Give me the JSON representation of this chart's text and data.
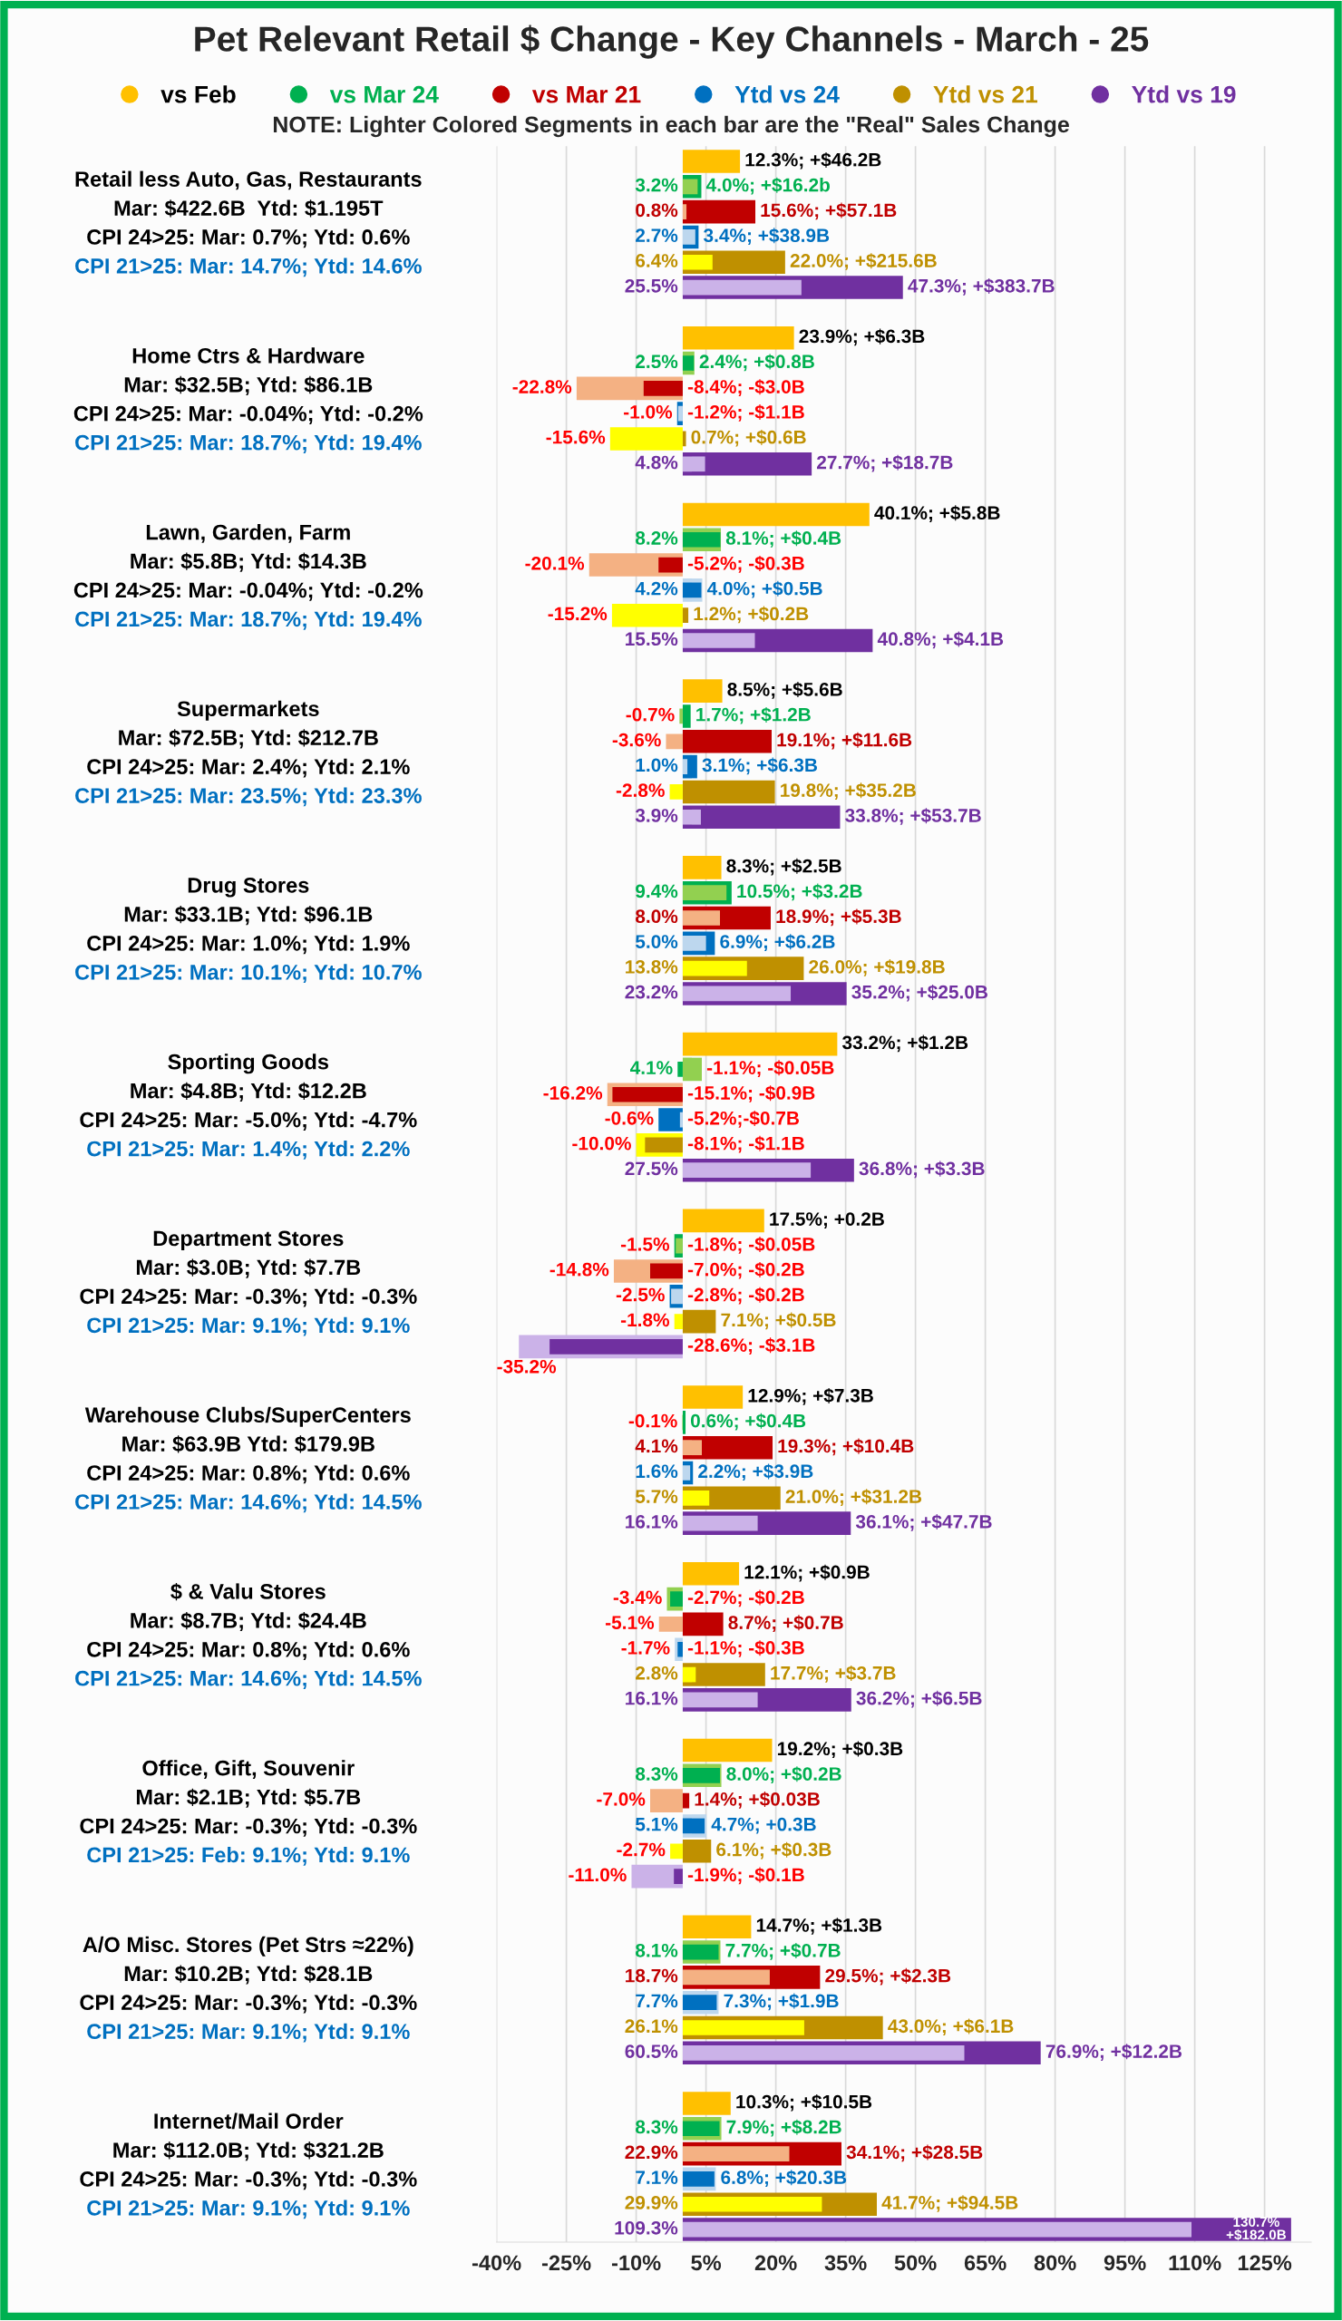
{
  "chart_data": {
    "type": "bar",
    "orientation": "horizontal",
    "title": "Pet Relevant Retail $ Change - Key Channels - March - 25",
    "annotations": [
      "NOTE: Lighter Colored Segments in each bar are the \"Real\" Sales Change"
    ],
    "categories": [
      "Retail less Auto, Gas, Restaurants\nMar: $422.6B  Ytd: $1.195T\nCPI 24>25: Mar: 0.7%; Ytd: 0.6%\nCPI 21>25: Mar: 14.7%; Ytd: 14.6%",
      "Home Ctrs & Hardware\nMar: $32.5B; Ytd: $86.1B\nCPI 24>25: Mar: -0.04%; Ytd: -0.2%\nCPI 21>25: Mar: 18.7%; Ytd: 19.4%",
      "Lawn, Garden, Farm\nMar: $5.8B; Ytd: $14.3B\nCPI 24>25: Mar: -0.04%; Ytd: -0.2%\nCPI 21>25: Mar: 18.7%; Ytd: 19.4%",
      "Supermarkets\nMar: $72.5B; Ytd: $212.7B\nCPI 24>25: Mar: 2.4%; Ytd: 2.1%\nCPI 21>25: Mar: 23.5%; Ytd: 23.3%",
      "Drug Stores\nMar: $33.1B; Ytd: $96.1B\nCPI 24>25: Mar: 1.0%; Ytd: 1.9%\nCPI 21>25: Mar: 10.1%; Ytd: 10.7%",
      "Sporting Goods\nMar: $4.8B; Ytd: $12.2B\nCPI 24>25: Mar: -5.0%; Ytd: -4.7%\nCPI 21>25: Mar: 1.4%; Ytd: 2.2%",
      "Department Stores\nMar: $3.0B; Ytd: $7.7B\nCPI 24>25: Mar: -0.3%; Ytd: -0.3%\nCPI 21>25: Mar: 9.1%; Ytd: 9.1%",
      "Warehouse Clubs/SuperCenters\nMar: $63.9B Ytd: $179.9B\nCPI 24>25: Mar: 0.8%; Ytd: 0.6%\nCPI 21>25: Mar: 14.6%; Ytd: 14.5%",
      "$ & Valu Stores\nMar: $8.7B; Ytd: $24.4B\nCPI 24>25: Mar: 0.8%; Ytd: 0.6%\nCPI 21>25: Mar: 14.6%; Ytd: 14.5%",
      "Office, Gift, Souvenir\nMar: $2.1B; Ytd: $5.7B\nCPI 24>25: Mar: -0.3%; Ytd: -0.3%\nCPI 21>25: Feb: 9.1%; Ytd: 9.1%",
      "A/O Misc. Stores (Pet Strs ≈22%)\nMar: $10.2B; Ytd: $28.1B\nCPI 24>25: Mar: -0.3%; Ytd: -0.3%\nCPI 21>25: Mar: 9.1%; Ytd: 9.1%",
      "Internet/Mail Order\nMar: $112.0B; Ytd: $321.2B\nCPI 24>25: Mar: -0.3%; Ytd: -0.3%\nCPI 21>25: Mar: 9.1%; Ytd: 9.1%"
    ],
    "series": [
      {
        "name": "vs Feb",
        "color": "#ffc000",
        "values": [
          12.3,
          23.9,
          40.1,
          8.5,
          8.3,
          33.2,
          17.5,
          12.9,
          12.1,
          19.2,
          14.7,
          10.3
        ],
        "value_labels": [
          "12.3%; +$46.2B",
          "23.9%; +$6.3B",
          "40.1%; +$5.8B",
          "8.5%; +$5.6B",
          "8.3%; +$2.5B",
          "33.2%; +$1.2B",
          "17.5%; +0.2B",
          "12.9%; +$7.3B",
          "12.1%; +$0.9B",
          "19.2%; +$0.3B",
          "14.7%; +$1.3B",
          "10.3%; +$10.5B"
        ]
      },
      {
        "name": "vs Mar 24",
        "color": "#00b050",
        "values": [
          4.0,
          2.4,
          8.1,
          1.7,
          10.5,
          -1.1,
          -1.8,
          0.6,
          -2.7,
          8.0,
          7.7,
          7.9
        ],
        "value_labels": [
          "4.0%; +$16.2b",
          "2.4%; +$0.8B",
          "8.1%; +$0.4B",
          "1.7%; +$1.2B",
          "10.5%; +$3.2B",
          "-1.1%; -$0.05B",
          "-1.8%; -$0.05B",
          "0.6%; +$0.4B",
          "-2.7%; -$0.2B",
          "8.0%; +$0.2B",
          "7.7%; +$0.7B",
          "7.9%; +$8.2B"
        ]
      },
      {
        "name": "vs Mar 21",
        "color": "#c00000",
        "values": [
          15.6,
          -8.4,
          -5.2,
          19.1,
          18.9,
          -15.1,
          -7.0,
          19.3,
          8.7,
          1.4,
          29.5,
          34.1
        ],
        "value_labels": [
          "15.6%; +$57.1B",
          "-8.4%; -$3.0B",
          "-5.2%; -$0.3B",
          "19.1%; +$11.6B",
          "18.9%; +$5.3B",
          "-15.1%; -$0.9B",
          "-7.0%; -$0.2B",
          "19.3%; +$10.4B",
          "8.7%; +$0.7B",
          "1.4%; +$0.03B",
          "29.5%; +$2.3B",
          "34.1%; +$28.5B"
        ]
      },
      {
        "name": "Ytd vs 24",
        "color": "#0070c0",
        "values": [
          3.4,
          -1.2,
          4.0,
          3.1,
          6.9,
          -5.2,
          -2.8,
          2.2,
          -1.1,
          4.7,
          7.3,
          6.8
        ],
        "value_labels": [
          "3.4%; +$38.9B",
          "-1.2%; -$1.1B",
          "4.0%; +$0.5B",
          "3.1%; +$6.3B",
          "6.9%; +$6.2B",
          "-5.2%;-$0.7B",
          "-2.8%; -$0.2B",
          "2.2%; +$3.9B",
          "-1.1%; -$0.3B",
          "4.7%; +0.3B",
          "7.3%; +$1.9B",
          "6.8%; +$20.3B"
        ]
      },
      {
        "name": "Ytd vs 21",
        "color": "#bf9000",
        "values": [
          22.0,
          0.7,
          1.2,
          19.8,
          26.0,
          -8.1,
          7.1,
          21.0,
          17.7,
          6.1,
          43.0,
          41.7
        ],
        "value_labels": [
          "22.0%; +$215.6B",
          "0.7%; +$0.6B",
          "1.2%; +$0.2B",
          "19.8%; +$35.2B",
          "26.0%; +$19.8B",
          "-8.1%; -$1.1B",
          "7.1%; +$0.5B",
          "21.0%; +$31.2B",
          "17.7%; +$3.7B",
          "6.1%; +$0.3B",
          "43.0%; +$6.1B",
          "41.7%; +$94.5B"
        ]
      },
      {
        "name": "Ytd vs 19",
        "color": "#7030a0",
        "values": [
          47.3,
          27.7,
          40.8,
          33.8,
          35.2,
          36.8,
          -28.6,
          36.1,
          36.2,
          -1.9,
          76.9,
          130.7
        ],
        "value_labels": [
          "47.3%; +$383.7B",
          "27.7%; +$18.7B",
          "40.8%; +$4.1B",
          "33.8%; +$53.7B",
          "35.2%; +$25.0B",
          "36.8%; +$3.3B",
          "-28.6%; -$3.1B",
          "36.1%; +$47.7B",
          "36.2%; +$6.5B",
          "-1.9%; -$0.1B",
          "76.9%; +$12.2B",
          "130.7%\n+$182.0B"
        ]
      },
      {
        "color": "#92d050",
        "values": [
          3.2,
          2.5,
          8.2,
          -0.7,
          9.4,
          4.1,
          -1.5,
          -0.1,
          -3.4,
          8.3,
          8.1,
          8.3
        ],
        "value_labels": [
          "3.2%",
          "2.5%",
          "8.2%",
          "-0.7%",
          "9.4%",
          "4.1%",
          "-1.5%",
          "-0.1%",
          "-3.4%",
          "8.3%",
          "8.1%",
          "8.3%"
        ]
      },
      {
        "color": "#f4b183",
        "values": [
          0.8,
          -22.8,
          -20.1,
          -3.6,
          8.0,
          -16.2,
          -14.8,
          4.1,
          -5.1,
          -7.0,
          18.7,
          22.9
        ],
        "value_labels": [
          "0.8%",
          "-22.8%",
          "-20.1%",
          "-3.6%",
          "8.0%",
          "-16.2%",
          "-14.8%",
          "4.1%",
          "-5.1%",
          "-7.0%",
          "18.7%",
          "22.9%"
        ]
      },
      {
        "color": "#bdd7ee",
        "values": [
          2.7,
          -1.0,
          4.2,
          1.0,
          5.0,
          -0.6,
          -2.5,
          1.6,
          -1.7,
          5.1,
          7.7,
          7.1
        ],
        "value_labels": [
          "2.7%",
          "-1.0%",
          "4.2%",
          "1.0%",
          "5.0%",
          "-0.6%",
          "-2.5%",
          "1.6%",
          "-1.7%",
          "5.1%",
          "7.7%",
          "7.1%"
        ]
      },
      {
        "color": "#ffff00",
        "values": [
          6.4,
          -15.6,
          -15.2,
          -2.8,
          13.8,
          -10.0,
          -1.8,
          5.7,
          2.8,
          -2.7,
          26.1,
          29.9
        ],
        "value_labels": [
          "6.4%",
          "-15.6%",
          "-15.2%",
          "-2.8%",
          "13.8%",
          "-10.0%",
          "-1.8%",
          "5.7%",
          "2.8%",
          "-2.7%",
          "26.1%",
          "29.9%"
        ]
      },
      {
        "color": "#cbb2e8",
        "values": [
          25.5,
          4.8,
          15.5,
          3.9,
          23.2,
          27.5,
          -35.2,
          16.1,
          16.1,
          -11.0,
          60.5,
          109.3
        ],
        "value_labels": [
          "25.5%",
          "4.8%",
          "15.5%",
          "3.9%",
          "23.2%",
          "27.5%",
          "-35.2%",
          "16.1%",
          "16.1%",
          "-11.0%",
          "60.5%",
          "109.3%"
        ]
      }
    ],
    "xlim": [
      -40,
      135
    ],
    "xticks": [
      {
        "value": -40,
        "label": "-40%"
      },
      {
        "value": -25,
        "label": "-25%"
      },
      {
        "value": -10,
        "label": "-10%"
      },
      {
        "value": 5,
        "label": "5%"
      },
      {
        "value": 20,
        "label": "20%"
      },
      {
        "value": 35,
        "label": "35%"
      },
      {
        "value": 50,
        "label": "50%"
      },
      {
        "value": 65,
        "label": "65%"
      },
      {
        "value": 80,
        "label": "80%"
      },
      {
        "value": 95,
        "label": "95%"
      },
      {
        "value": 110,
        "label": "110%"
      },
      {
        "value": 125,
        "label": "125%"
      }
    ],
    "grid": "x",
    "legend": "top"
  }
}
